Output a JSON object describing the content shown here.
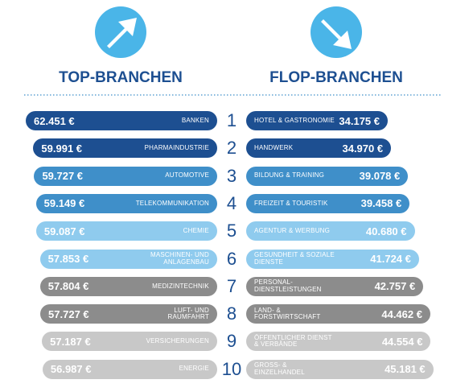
{
  "ranks": [
    "1",
    "2",
    "3",
    "4",
    "5",
    "6",
    "7",
    "8",
    "9",
    "10"
  ],
  "chart_data": [
    {
      "type": "bar",
      "title": "TOP-BRANCHEN",
      "categories": [
        "BANKEN",
        "PHARMAINDUSTRIE",
        "AUTOMOTIVE",
        "TELEKOMMUNIKATION",
        "CHEMIE",
        "MASCHINEN- UND ANLAGENBAU",
        "MEDIZINTECHNIK",
        "LUFT- UND RAUMFAHRT",
        "VERSICHERUNGEN",
        "ENERGIE"
      ],
      "values": [
        62451,
        59991,
        59727,
        59149,
        59087,
        57853,
        57804,
        57727,
        57187,
        56987
      ],
      "value_labels": [
        "62.451 €",
        "59.991 €",
        "59.727 €",
        "59.149 €",
        "59.087 €",
        "57.853 €",
        "57.804 €",
        "57.727 €",
        "57.187 €",
        "56.987 €"
      ],
      "colors": [
        "#1d4f91",
        "#1d4f91",
        "#3f8fc9",
        "#3f8fc9",
        "#8fcbee",
        "#8fcbee",
        "#8c8c8c",
        "#8c8c8c",
        "#c8c8c8",
        "#c8c8c8"
      ]
    },
    {
      "type": "bar",
      "title": "FLOP-BRANCHEN",
      "categories": [
        "HOTEL & GASTRONOMIE",
        "HANDWERK",
        "BILDUNG & TRAINING",
        "FREIZEIT & TOURISTIK",
        "AGENTUR & WERBUNG",
        "GESUNDHEIT & SOZIALE DIENSTE",
        "PERSONAL-DIENSTLEISTUNGEN",
        "LAND- & FORSTWIRTSCHAFT",
        "ÖFFENTLICHER DIENST & VERBÄNDE",
        "GROSS- & EINZELHANDEL"
      ],
      "values": [
        34175,
        34970,
        39078,
        39458,
        40680,
        41724,
        42757,
        44462,
        44554,
        45181
      ],
      "value_labels": [
        "34.175 €",
        "34.970 €",
        "39.078 €",
        "39.458 €",
        "40.680 €",
        "41.724 €",
        "42.757 €",
        "44.462 €",
        "44.554 €",
        "45.181 €"
      ],
      "colors": [
        "#1d4f91",
        "#1d4f91",
        "#3f8fc9",
        "#3f8fc9",
        "#8fcbee",
        "#8fcbee",
        "#8c8c8c",
        "#8c8c8c",
        "#c8c8c8",
        "#c8c8c8"
      ]
    }
  ]
}
